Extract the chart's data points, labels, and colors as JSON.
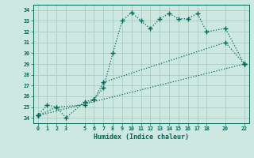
{
  "title": "",
  "xlabel": "Humidex (Indice chaleur)",
  "bg_color": "#cce8e0",
  "grid_color": "#aaccc4",
  "line_color": "#006655",
  "xlim": [
    -0.5,
    22.5
  ],
  "ylim": [
    23.5,
    34.5
  ],
  "xticks": [
    0,
    1,
    2,
    3,
    5,
    6,
    7,
    8,
    9,
    10,
    11,
    12,
    13,
    14,
    15,
    16,
    17,
    18,
    20,
    22
  ],
  "yticks": [
    24,
    25,
    26,
    27,
    28,
    29,
    30,
    31,
    32,
    33,
    34
  ],
  "line1_x": [
    0,
    1,
    2,
    5,
    6,
    7,
    8,
    9,
    10,
    11,
    12,
    13,
    14,
    15,
    16,
    17,
    18,
    20,
    22
  ],
  "line1_y": [
    24.2,
    25.2,
    25.0,
    25.2,
    25.7,
    26.8,
    30.0,
    33.0,
    33.8,
    33.0,
    32.3,
    33.2,
    33.7,
    33.2,
    33.2,
    33.7,
    32.0,
    32.3,
    29.0
  ],
  "line2_x": [
    0,
    2,
    3,
    5,
    6,
    7,
    20,
    22
  ],
  "line2_y": [
    24.2,
    25.0,
    24.0,
    25.5,
    25.7,
    27.3,
    31.0,
    29.0
  ],
  "line3_x": [
    0,
    22
  ],
  "line3_y": [
    24.2,
    29.0
  ]
}
